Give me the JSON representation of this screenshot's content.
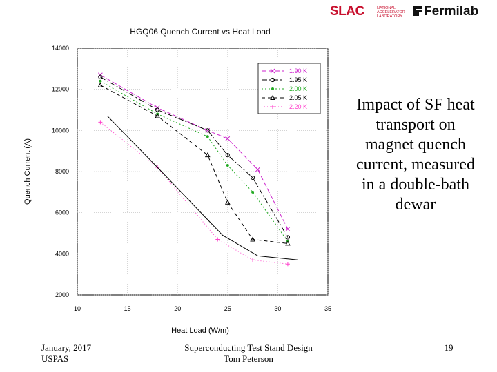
{
  "logos": {
    "slac": "SLAC",
    "slac_sub": "NATIONAL ACCELERATOR LABORATORY",
    "fermilab": "Fermilab"
  },
  "side_text": "Impact of SF heat transport on magnet quench current, measured in a double-bath dewar",
  "footer": {
    "left_line1": "January, 2017",
    "left_line2": "USPAS",
    "center_line1": "Superconducting Test Stand Design",
    "center_line2": "Tom Peterson",
    "page_number": "19"
  },
  "chart_data": {
    "type": "line",
    "title": "HGQ06 Quench Current vs Heat Load",
    "xlabel": "Heat Load (W/m)",
    "ylabel": "Quench Current (A)",
    "xlim": [
      10,
      35
    ],
    "ylim": [
      2000,
      14000
    ],
    "xticks": [
      10,
      15,
      20,
      25,
      30,
      35
    ],
    "yticks": [
      2000,
      4000,
      6000,
      8000,
      10000,
      12000,
      14000
    ],
    "grid": true,
    "legend_position": "top-right",
    "series": [
      {
        "name": "1.90 K",
        "color": "#cc22cc",
        "dash": "7 3",
        "marker": "x",
        "x": [
          12.3,
          18,
          23,
          25,
          28,
          31
        ],
        "y": [
          12700,
          11100,
          10000,
          9600,
          8100,
          5200
        ]
      },
      {
        "name": "1.95 K",
        "color": "#000000",
        "dash": "8 3 2 3",
        "marker": "circle",
        "x": [
          12.3,
          18,
          23,
          25,
          27.5,
          31
        ],
        "y": [
          12600,
          11000,
          10000,
          8800,
          7700,
          4800
        ]
      },
      {
        "name": "2.00 K",
        "color": "#22aa22",
        "dash": "2 3",
        "marker": "dot",
        "x": [
          12.3,
          18,
          23,
          25,
          27.5,
          31
        ],
        "y": [
          12400,
          10800,
          9700,
          8300,
          7000,
          4600
        ]
      },
      {
        "name": "2.05 K",
        "color": "#000000",
        "dash": "5 4",
        "marker": "triangle",
        "x": [
          12.3,
          18,
          23,
          25,
          27.5,
          31
        ],
        "y": [
          12200,
          10700,
          8800,
          6500,
          4700,
          4500
        ]
      },
      {
        "name": "2.20 K",
        "color": "#ff44cc",
        "dash": "1 3",
        "marker": "plus",
        "x": [
          12.3,
          18,
          24,
          27.5,
          31
        ],
        "y": [
          10400,
          8200,
          4700,
          3700,
          3500
        ]
      },
      {
        "name": "",
        "color": "#000000",
        "dash": "",
        "marker": "none",
        "x": [
          13,
          18,
          24.5,
          28,
          32
        ],
        "y": [
          10700,
          8200,
          4900,
          3900,
          3700
        ]
      }
    ]
  }
}
